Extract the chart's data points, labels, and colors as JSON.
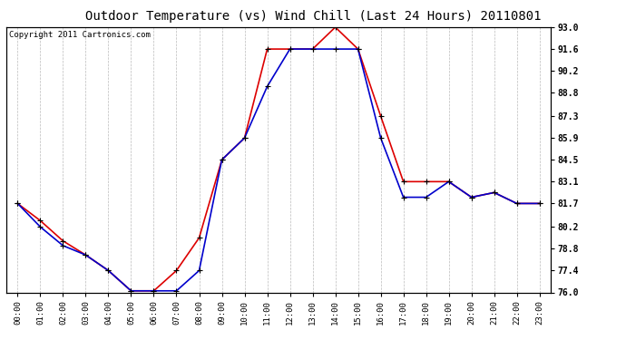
{
  "title": "Outdoor Temperature (vs) Wind Chill (Last 24 Hours) 20110801",
  "copyright": "Copyright 2011 Cartronics.com",
  "hours": [
    "00:00",
    "01:00",
    "02:00",
    "03:00",
    "04:00",
    "05:00",
    "06:00",
    "07:00",
    "08:00",
    "09:00",
    "10:00",
    "11:00",
    "12:00",
    "13:00",
    "14:00",
    "15:00",
    "16:00",
    "17:00",
    "18:00",
    "19:00",
    "20:00",
    "21:00",
    "22:00",
    "23:00"
  ],
  "outdoor_temp": [
    81.7,
    80.6,
    79.3,
    78.4,
    77.4,
    76.1,
    76.1,
    77.4,
    79.5,
    84.5,
    85.9,
    91.6,
    91.6,
    91.6,
    93.0,
    91.6,
    87.3,
    83.1,
    83.1,
    83.1,
    82.1,
    82.4,
    81.7,
    81.7
  ],
  "wind_chill": [
    81.7,
    80.2,
    79.0,
    78.4,
    77.4,
    76.1,
    76.1,
    76.1,
    77.4,
    84.5,
    85.9,
    89.2,
    91.6,
    91.6,
    91.6,
    91.6,
    85.9,
    82.1,
    82.1,
    83.1,
    82.1,
    82.4,
    81.7,
    81.7
  ],
  "ylim": [
    76.0,
    93.0
  ],
  "yticks": [
    76.0,
    77.4,
    78.8,
    80.2,
    81.7,
    83.1,
    84.5,
    85.9,
    87.3,
    88.8,
    90.2,
    91.6,
    93.0
  ],
  "temp_color": "#dd0000",
  "wind_color": "#0000cc",
  "bg_color": "#ffffff",
  "plot_bg": "#ffffff",
  "grid_color": "#bbbbbb",
  "title_fontsize": 10,
  "copyright_fontsize": 6.5,
  "marker": "+",
  "marker_size": 5,
  "line_width": 1.2
}
